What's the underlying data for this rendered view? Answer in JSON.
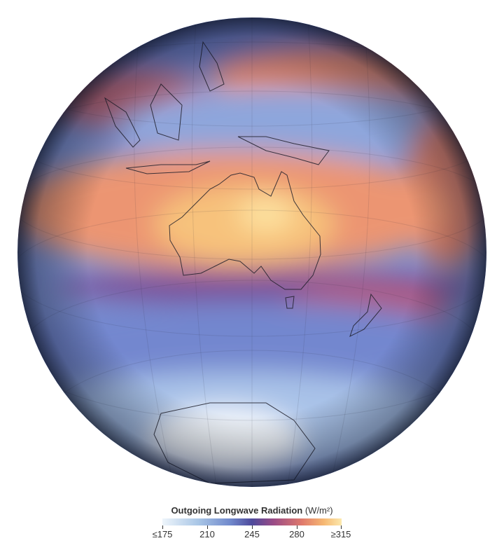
{
  "legend": {
    "title": "Outgoing Longwave Radiation",
    "unit": "(W/m²)",
    "ticks": [
      "≤175",
      "210",
      "245",
      "280",
      "≥315"
    ],
    "tick_values": [
      175,
      210,
      245,
      280,
      315
    ],
    "colors": [
      "#eef5fb",
      "#a9c6e6",
      "#7089cc",
      "#4e4a9c",
      "#9a4b86",
      "#e07a6c",
      "#f6b872",
      "#fce9ad"
    ]
  },
  "map": {
    "projection": "orthographic globe",
    "center_region": "Australia"
  }
}
